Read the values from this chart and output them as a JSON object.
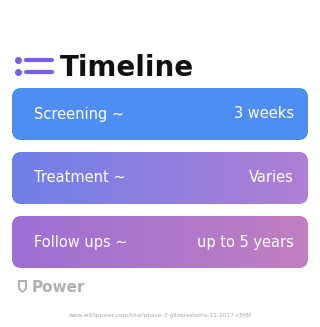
{
  "title": "Timeline",
  "title_fontsize": 20,
  "title_color": "#111111",
  "icon_color": "#7B5CF5",
  "background_color": "#ffffff",
  "rows": [
    {
      "left_text": "Screening ~",
      "right_text": "3 weeks",
      "color_left": "#4d8ef0",
      "color_right": "#4d8ef0"
    },
    {
      "left_text": "Treatment ~",
      "right_text": "Varies",
      "color_left": "#6e7fe8",
      "color_right": "#b07fd4"
    },
    {
      "left_text": "Follow ups ~",
      "right_text": "up to 5 years",
      "color_left": "#9b6fd4",
      "color_right": "#c07fc0"
    }
  ],
  "watermark_text": "Power",
  "url_text": "www.withpower.com/trial/phase-3-glioblastoma-11-2017-c5f8f",
  "url_color": "#aaaaaa",
  "watermark_color": "#b0b0b0"
}
